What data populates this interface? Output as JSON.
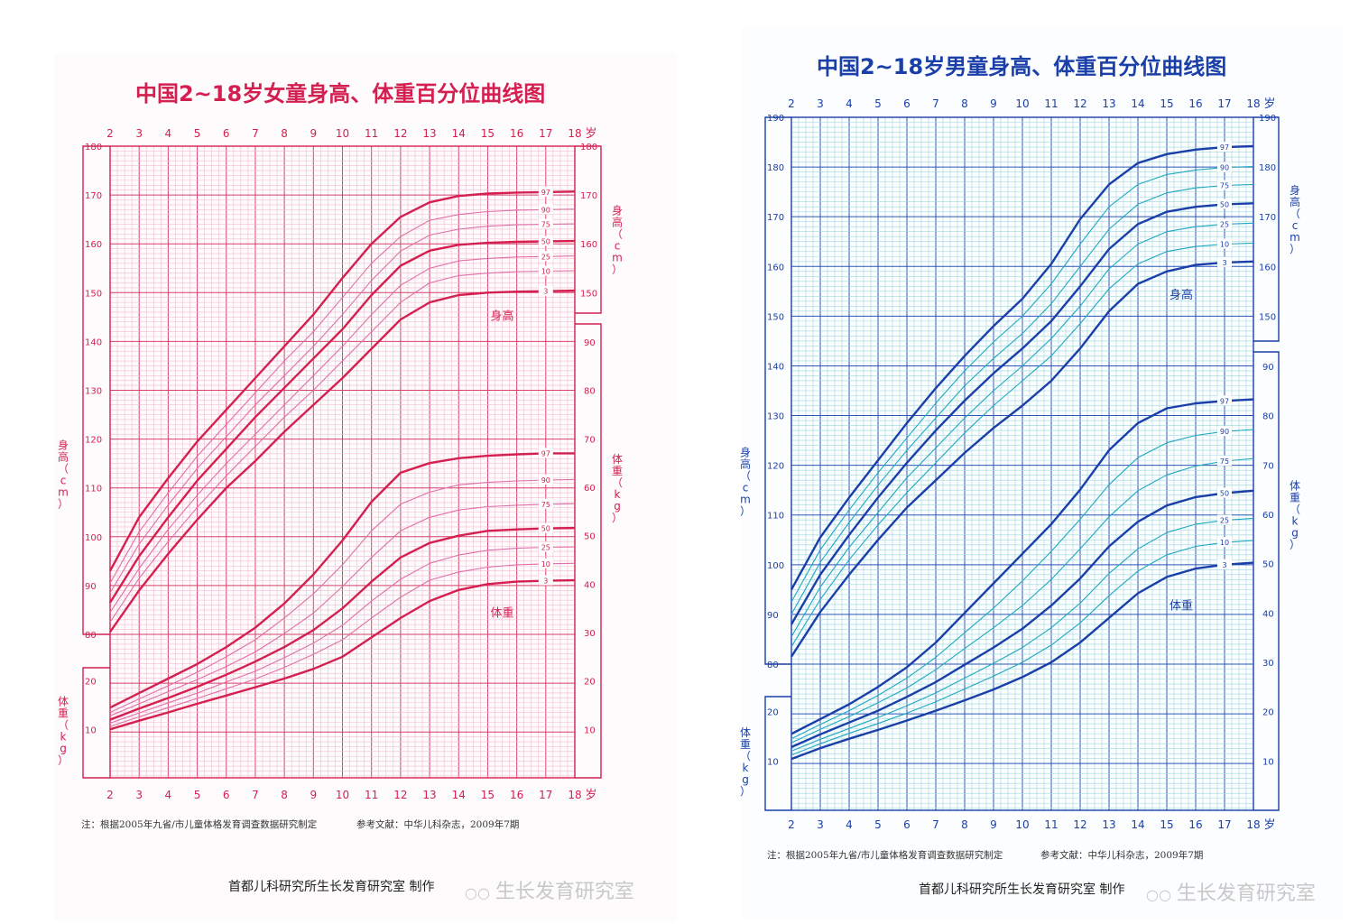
{
  "charts": [
    {
      "title": "中国2~18岁女童身高、体重百分位曲线图",
      "theme": {
        "border": "#d42050",
        "major": "#d8406a",
        "minor": "#f3bcd0",
        "curve": "#d42050",
        "thin": "#e070a8",
        "text": "#d42050"
      },
      "x_ticks": [
        "2",
        "3",
        "4",
        "5",
        "6",
        "7",
        "8",
        "9",
        "10",
        "11",
        "12",
        "13",
        "14",
        "15",
        "16",
        "17",
        "18"
      ],
      "x_unit": "岁",
      "height_ticks": [
        "180",
        "170",
        "160",
        "150",
        "140",
        "130",
        "120",
        "110",
        "100",
        "90",
        "80"
      ],
      "weight_ticks_right": [
        "90",
        "80",
        "70",
        "60",
        "50",
        "40",
        "30",
        "20",
        "10"
      ],
      "weight_ticks_left": [
        "20",
        "10"
      ],
      "height_axis_right": "身高（cm）",
      "height_axis_left": "身高（cm）",
      "weight_axis_right": "体重（kg）",
      "weight_axis_left": "体重（kg）",
      "height_label": "身高",
      "weight_label": "体重",
      "percentile_labels": [
        "97",
        "90",
        "75",
        "50",
        "25",
        "10",
        "3"
      ],
      "note": "注：根据2005年九省/市儿童体格发育调查数据研究制定",
      "reference": "参考文献：中华儿科杂志，2009年7期",
      "footer": "首都儿科研究所生长发育研究室 制作",
      "watermark": "生长发育研究室"
    },
    {
      "title": "中国2~18岁男童身高、体重百分位曲线图",
      "theme": {
        "border": "#1a3fa8",
        "major": "#2a58b8",
        "minor": "#9fd8de",
        "curve": "#1a3fa8",
        "thin": "#20a8c0",
        "text": "#1a3fa8"
      },
      "x_ticks": [
        "2",
        "3",
        "4",
        "5",
        "6",
        "7",
        "8",
        "9",
        "10",
        "11",
        "12",
        "13",
        "14",
        "15",
        "16",
        "17",
        "18"
      ],
      "x_unit": "岁",
      "height_ticks": [
        "190",
        "180",
        "170",
        "160",
        "150",
        "140",
        "130",
        "120",
        "110",
        "100",
        "90",
        "80"
      ],
      "height_ticks_right": [
        "190",
        "180",
        "170",
        "160",
        "150"
      ],
      "weight_ticks_right": [
        "90",
        "80",
        "70",
        "60",
        "50",
        "40",
        "30",
        "20",
        "10"
      ],
      "weight_ticks_left": [
        "20",
        "10"
      ],
      "height_axis_right": "身高（cm）",
      "height_axis_left": "身高（cm）",
      "weight_axis_right": "体重（kg）",
      "weight_axis_left": "体重（kg）",
      "height_label": "身高",
      "weight_label": "体重",
      "percentile_labels": [
        "97",
        "90",
        "75",
        "50",
        "25",
        "10",
        "3"
      ],
      "note": "注：根据2005年九省/市儿童体格发育调查数据研究制定",
      "reference": "参考文献：中华儿科杂志，2009年7期",
      "footer": "首都儿科研究所生长发育研究室 制作",
      "watermark": "生长发育研究室"
    }
  ],
  "chart_data": [
    {
      "type": "line",
      "title": "中国2~18岁女童身高、体重百分位曲线图",
      "x": [
        2,
        3,
        4,
        5,
        6,
        7,
        8,
        9,
        10,
        11,
        12,
        13,
        14,
        15,
        16,
        17,
        18
      ],
      "xlabel": "岁",
      "xlim": [
        2,
        18
      ],
      "height_ylim": [
        80,
        180
      ],
      "weight_ylim": [
        0,
        90
      ],
      "height_series": [
        {
          "name": "97",
          "values": [
            93.0,
            104.0,
            112.0,
            119.5,
            126.0,
            132.5,
            139.0,
            145.5,
            153.0,
            160.0,
            165.5,
            168.5,
            169.8,
            170.3,
            170.5,
            170.6,
            170.7
          ]
        },
        {
          "name": "90",
          "values": [
            90.5,
            101.0,
            109.0,
            116.5,
            123.0,
            129.5,
            136.0,
            142.0,
            149.0,
            156.0,
            161.5,
            164.8,
            166.0,
            166.6,
            166.9,
            167.0,
            167.1
          ]
        },
        {
          "name": "75",
          "values": [
            88.5,
            98.5,
            106.5,
            114.0,
            120.5,
            127.0,
            133.0,
            139.0,
            145.5,
            152.5,
            158.5,
            161.8,
            163.0,
            163.6,
            163.9,
            164.0,
            164.1
          ]
        },
        {
          "name": "50",
          "values": [
            86.5,
            96.0,
            104.0,
            111.5,
            118.0,
            124.5,
            130.5,
            136.5,
            142.5,
            149.5,
            155.5,
            158.6,
            159.8,
            160.2,
            160.4,
            160.5,
            160.6
          ]
        },
        {
          "name": "25",
          "values": [
            84.5,
            93.5,
            101.5,
            108.5,
            115.0,
            121.0,
            127.0,
            133.0,
            139.0,
            145.5,
            151.5,
            155.0,
            156.5,
            157.0,
            157.3,
            157.4,
            157.5
          ]
        },
        {
          "name": "10",
          "values": [
            82.5,
            91.5,
            99.0,
            106.0,
            112.5,
            118.5,
            124.5,
            130.0,
            136.0,
            142.0,
            148.0,
            152.0,
            153.5,
            154.0,
            154.3,
            154.4,
            154.5
          ]
        },
        {
          "name": "3",
          "values": [
            80.5,
            89.0,
            96.5,
            103.5,
            110.0,
            115.5,
            121.5,
            127.0,
            132.5,
            138.5,
            144.5,
            148.0,
            149.5,
            150.0,
            150.2,
            150.3,
            150.4
          ]
        }
      ],
      "weight_series": [
        {
          "name": "97",
          "values": [
            14.5,
            17.5,
            20.5,
            23.5,
            27.0,
            31.0,
            36.0,
            42.0,
            49.0,
            57.0,
            63.0,
            65.0,
            66.0,
            66.5,
            66.8,
            67.0,
            67.0
          ]
        },
        {
          "name": "90",
          "values": [
            13.5,
            16.3,
            19.0,
            21.8,
            25.0,
            28.5,
            33.0,
            38.0,
            44.0,
            51.0,
            56.5,
            59.0,
            60.5,
            61.0,
            61.3,
            61.5,
            61.6
          ]
        },
        {
          "name": "75",
          "values": [
            12.8,
            15.3,
            17.8,
            20.3,
            23.0,
            26.0,
            29.8,
            34.0,
            39.5,
            45.5,
            51.0,
            53.8,
            55.3,
            56.0,
            56.3,
            56.5,
            56.6
          ]
        },
        {
          "name": "50",
          "values": [
            12.0,
            14.3,
            16.5,
            18.8,
            21.3,
            24.0,
            27.0,
            30.5,
            35.0,
            40.5,
            45.5,
            48.5,
            50.0,
            51.0,
            51.3,
            51.5,
            51.6
          ]
        },
        {
          "name": "25",
          "values": [
            11.3,
            13.4,
            15.5,
            17.5,
            19.8,
            22.0,
            24.8,
            27.8,
            31.5,
            36.5,
            41.0,
            44.3,
            46.0,
            47.0,
            47.4,
            47.6,
            47.7
          ]
        },
        {
          "name": "10",
          "values": [
            10.6,
            12.6,
            14.5,
            16.4,
            18.4,
            20.4,
            22.8,
            25.5,
            28.5,
            33.0,
            37.3,
            40.8,
            42.5,
            43.5,
            44.0,
            44.2,
            44.3
          ]
        },
        {
          "name": "3",
          "values": [
            10.0,
            11.8,
            13.5,
            15.3,
            17.0,
            18.7,
            20.5,
            22.5,
            25.0,
            29.0,
            33.0,
            36.5,
            38.8,
            40.0,
            40.5,
            40.7,
            40.8
          ]
        }
      ]
    },
    {
      "type": "line",
      "title": "中国2~18岁男童身高、体重百分位曲线图",
      "x": [
        2,
        3,
        4,
        5,
        6,
        7,
        8,
        9,
        10,
        11,
        12,
        13,
        14,
        15,
        16,
        17,
        18
      ],
      "xlabel": "岁",
      "xlim": [
        2,
        18
      ],
      "height_ylim": [
        80,
        190
      ],
      "weight_ylim": [
        0,
        90
      ],
      "height_series": [
        {
          "name": "97",
          "values": [
            95.0,
            105.5,
            113.5,
            121.0,
            128.5,
            135.5,
            142.0,
            148.0,
            153.5,
            160.5,
            169.5,
            176.5,
            180.8,
            182.6,
            183.5,
            184.0,
            184.2
          ]
        },
        {
          "name": "90",
          "values": [
            92.5,
            103.0,
            111.0,
            118.5,
            125.5,
            132.5,
            139.0,
            144.8,
            150.0,
            156.5,
            164.5,
            172.0,
            176.5,
            178.5,
            179.4,
            179.9,
            180.1
          ]
        },
        {
          "name": "75",
          "values": [
            90.0,
            100.5,
            108.5,
            116.0,
            123.0,
            129.5,
            136.0,
            141.5,
            146.5,
            152.5,
            160.0,
            167.5,
            172.5,
            174.8,
            175.8,
            176.3,
            176.5
          ]
        },
        {
          "name": "50",
          "values": [
            88.0,
            98.0,
            106.0,
            113.5,
            120.5,
            127.0,
            133.0,
            138.5,
            143.5,
            149.0,
            156.0,
            163.5,
            168.5,
            171.0,
            172.0,
            172.5,
            172.7
          ]
        },
        {
          "name": "25",
          "values": [
            85.5,
            95.5,
            103.5,
            110.5,
            117.5,
            123.5,
            129.5,
            135.0,
            140.0,
            145.5,
            152.0,
            159.5,
            164.5,
            167.0,
            168.0,
            168.5,
            168.7
          ]
        },
        {
          "name": "10",
          "values": [
            83.5,
            93.0,
            101.0,
            108.0,
            114.5,
            120.5,
            126.5,
            132.0,
            137.0,
            142.0,
            148.5,
            155.5,
            160.5,
            163.0,
            164.0,
            164.5,
            164.7
          ]
        },
        {
          "name": "3",
          "values": [
            81.5,
            90.5,
            98.0,
            105.0,
            111.5,
            117.0,
            122.5,
            127.5,
            132.0,
            137.0,
            143.5,
            151.0,
            156.5,
            159.0,
            160.3,
            160.8,
            161.0
          ]
        }
      ],
      "weight_series": [
        {
          "name": "97",
          "values": [
            15.5,
            18.5,
            21.5,
            25.0,
            29.0,
            34.0,
            40.0,
            46.0,
            52.0,
            58.0,
            65.0,
            73.0,
            78.5,
            81.5,
            82.5,
            83.0,
            83.3
          ]
        },
        {
          "name": "90",
          "values": [
            14.5,
            17.4,
            20.2,
            23.3,
            26.8,
            31.0,
            36.0,
            41.0,
            46.5,
            52.5,
            59.0,
            66.0,
            71.5,
            74.5,
            76.0,
            76.8,
            77.2
          ]
        },
        {
          "name": "75",
          "values": [
            13.7,
            16.4,
            19.0,
            21.8,
            24.8,
            28.5,
            32.8,
            37.0,
            41.5,
            46.8,
            53.0,
            59.5,
            64.8,
            68.0,
            69.8,
            70.8,
            71.3
          ]
        },
        {
          "name": "50",
          "values": [
            12.8,
            15.4,
            17.8,
            20.2,
            23.0,
            26.0,
            29.5,
            33.0,
            36.8,
            41.5,
            47.0,
            53.5,
            58.5,
            61.8,
            63.5,
            64.3,
            64.8
          ]
        },
        {
          "name": "25",
          "values": [
            12.0,
            14.4,
            16.6,
            18.8,
            21.2,
            23.8,
            26.8,
            29.8,
            33.0,
            37.0,
            42.0,
            48.0,
            53.0,
            56.3,
            58.0,
            58.8,
            59.2
          ]
        },
        {
          "name": "10",
          "values": [
            11.2,
            13.5,
            15.6,
            17.6,
            19.7,
            22.0,
            24.6,
            27.2,
            30.0,
            33.5,
            38.0,
            43.5,
            48.5,
            51.8,
            53.5,
            54.3,
            54.7
          ]
        },
        {
          "name": "3",
          "values": [
            10.4,
            12.6,
            14.5,
            16.3,
            18.2,
            20.2,
            22.3,
            24.5,
            27.0,
            30.0,
            34.0,
            39.0,
            44.0,
            47.3,
            49.0,
            49.8,
            50.2
          ]
        }
      ]
    }
  ]
}
